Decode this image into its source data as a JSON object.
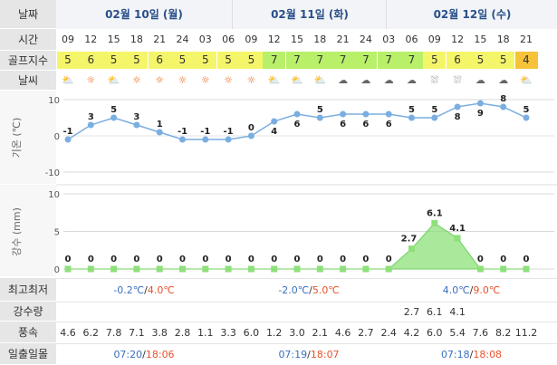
{
  "labels": {
    "date": "날짜",
    "time": "시간",
    "golf": "골프지수",
    "weather": "날씨",
    "temp_axis": "기온 (℃)",
    "rain_axis": "강수 (mm)",
    "minmax": "최고최저",
    "precip": "강수량",
    "wind": "풍속",
    "sun": "일출일몰"
  },
  "dates": [
    "02월 10일 (월)",
    "02월 11일 (화)",
    "02월 12일 (수)"
  ],
  "hours": [
    "09",
    "12",
    "15",
    "18",
    "21",
    "24",
    "03",
    "06",
    "09",
    "12",
    "15",
    "18",
    "21",
    "24",
    "03",
    "06",
    "09",
    "12",
    "15",
    "18",
    "21"
  ],
  "golf_index": [
    "5",
    "6",
    "5",
    "5",
    "6",
    "5",
    "5",
    "5",
    "5",
    "7",
    "7",
    "7",
    "7",
    "7",
    "7",
    "7",
    "5",
    "6",
    "5",
    "5",
    "4"
  ],
  "golf_colors": [
    "#f5f56a",
    "#f5f56a",
    "#f5f56a",
    "#f5f56a",
    "#f5f56a",
    "#f5f56a",
    "#f5f56a",
    "#f5f56a",
    "#f5f56a",
    "#b8f06a",
    "#b8f06a",
    "#b8f06a",
    "#b8f06a",
    "#b8f06a",
    "#b8f06a",
    "#b8f06a",
    "#f5f56a",
    "#f5f56a",
    "#f5f56a",
    "#f5f56a",
    "#f5c23a"
  ],
  "weather_icons": [
    "partly-cloudy",
    "sunny",
    "partly-cloudy",
    "sunny",
    "sunny",
    "sunny",
    "sunny",
    "sunny",
    "sunny",
    "partly-cloudy",
    "partly-cloudy",
    "partly-cloudy",
    "cloudy",
    "cloudy",
    "cloudy",
    "cloudy",
    "rain",
    "rain",
    "cloudy",
    "cloudy",
    "partly-cloudy"
  ],
  "chart_data": [
    {
      "type": "line",
      "title": "",
      "ylabel": "기온 (℃)",
      "ylim": [
        -10,
        10
      ],
      "yticks": [
        "10",
        "0",
        "-10"
      ],
      "x": [
        "09",
        "12",
        "15",
        "18",
        "21",
        "24",
        "03",
        "06",
        "09",
        "12",
        "15",
        "18",
        "21",
        "24",
        "03",
        "06",
        "09",
        "12",
        "15",
        "18",
        "21"
      ],
      "values": [
        -1,
        3,
        5,
        3,
        1,
        -1,
        -1,
        -1,
        0,
        4,
        6,
        5,
        6,
        6,
        6,
        5,
        5,
        8,
        9,
        8,
        5
      ],
      "value_labels": [
        "-1",
        "3",
        "5",
        "3",
        "1",
        "-1",
        "-1",
        "-1",
        "0",
        "4",
        "6",
        "5",
        "6",
        "6",
        "6",
        "5",
        "5",
        "8",
        "9",
        "8",
        "5"
      ],
      "color": "#7aaee0"
    },
    {
      "type": "area",
      "title": "",
      "ylabel": "강수 (mm)",
      "ylim": [
        0,
        10
      ],
      "yticks": [
        "10",
        "5",
        "0"
      ],
      "x": [
        "09",
        "12",
        "15",
        "18",
        "21",
        "24",
        "03",
        "06",
        "09",
        "12",
        "15",
        "18",
        "21",
        "24",
        "03",
        "06",
        "09",
        "12",
        "15",
        "18",
        "21"
      ],
      "values": [
        0,
        0,
        0,
        0,
        0,
        0,
        0,
        0,
        0,
        0,
        0,
        0,
        0,
        0,
        0,
        2.7,
        6.1,
        4.1,
        0,
        0,
        0
      ],
      "value_labels": [
        "0",
        "0",
        "0",
        "0",
        "0",
        "0",
        "0",
        "0",
        "0",
        "0",
        "0",
        "0",
        "0",
        "0",
        "0",
        "2.7",
        "6.1",
        "4.1",
        "0",
        "0",
        "0"
      ],
      "color": "#8ee07a"
    }
  ],
  "minmax": [
    "-0.2℃/4.0℃",
    "-2.0℃/5.0℃",
    "4.0℃/9.0℃"
  ],
  "minmax_parts": [
    {
      "min": "-0.2℃",
      "max": "4.0℃"
    },
    {
      "min": "-2.0℃",
      "max": "5.0℃"
    },
    {
      "min": "4.0℃",
      "max": "9.0℃"
    }
  ],
  "precip": [
    "",
    "",
    "",
    "",
    "",
    "",
    "",
    "",
    "",
    "",
    "",
    "",
    "",
    "",
    "",
    "2.7",
    "6.1",
    "4.1",
    "",
    "",
    ""
  ],
  "wind": [
    "4.6",
    "6.2",
    "7.8",
    "7.1",
    "3.8",
    "2.8",
    "1.1",
    "3.3",
    "6.0",
    "1.2",
    "3.0",
    "2.1",
    "4.6",
    "2.7",
    "2.4",
    "4.2",
    "6.0",
    "5.4",
    "7.6",
    "8.2",
    "11.2"
  ],
  "sunrise_sunset": [
    {
      "rise": "07:20",
      "set": "18:06"
    },
    {
      "rise": "07:19",
      "set": "18:07"
    },
    {
      "rise": "07:18",
      "set": "18:08"
    }
  ],
  "slash": "/"
}
